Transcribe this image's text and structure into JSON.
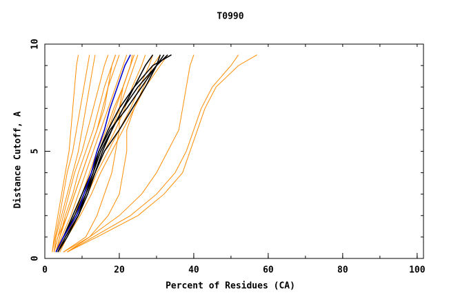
{
  "chart_data": {
    "type": "line",
    "title": "T0990",
    "xlabel": "Percent of Residues (CA)",
    "ylabel": "Distance Cutoff, A",
    "xlim": [
      0,
      101.7
    ],
    "ylim": [
      0,
      10
    ],
    "xticks": [
      0,
      20,
      40,
      60,
      80,
      100
    ],
    "yticks": [
      0,
      5,
      10
    ],
    "y": [
      0.3,
      1,
      2,
      3,
      4,
      5,
      6,
      7,
      8,
      9,
      9.5
    ],
    "series": [
      {
        "color": "#ff8c00",
        "x": [
          2,
          2.5,
          3.5,
          4.5,
          5.5,
          6.5,
          7,
          7.5,
          8,
          8.5,
          9
        ]
      },
      {
        "color": "#ff8c00",
        "x": [
          2,
          2.8,
          4,
          5,
          6,
          7.5,
          8.5,
          9.5,
          10.5,
          11.5,
          12
        ]
      },
      {
        "color": "#ff8c00",
        "x": [
          2.5,
          3,
          4.5,
          6,
          7.5,
          9,
          10,
          11,
          12,
          13,
          13.5
        ]
      },
      {
        "color": "#ff8c00",
        "x": [
          2.5,
          3.5,
          5,
          6.5,
          8,
          10,
          11.5,
          13,
          14.5,
          16,
          17
        ]
      },
      {
        "color": "#ff8c00",
        "x": [
          3,
          4,
          5.5,
          7.5,
          9,
          11,
          13,
          14.5,
          16,
          18,
          19
        ]
      },
      {
        "color": "#ff8c00",
        "x": [
          2.5,
          3.5,
          6,
          8,
          10,
          12,
          14,
          15.5,
          17,
          19,
          20
        ]
      },
      {
        "color": "#ff8c00",
        "x": [
          3,
          4,
          6,
          8,
          10,
          12,
          14,
          16,
          17,
          18,
          19
        ]
      },
      {
        "color": "#ff8c00",
        "x": [
          3,
          4.5,
          7,
          9,
          11,
          13,
          15,
          17,
          19,
          21,
          22
        ]
      },
      {
        "color": "#ff8c00",
        "x": [
          3.5,
          5,
          7.5,
          10,
          12.5,
          14.5,
          17,
          19,
          21,
          23,
          23.5
        ]
      },
      {
        "color": "#ff8c00",
        "x": [
          3,
          5,
          8,
          10,
          12,
          14,
          16.5,
          18.5,
          21,
          23,
          24
        ]
      },
      {
        "color": "#ff8c00",
        "x": [
          3.5,
          5,
          8,
          11,
          13,
          15,
          18,
          20,
          22,
          24,
          25
        ]
      },
      {
        "color": "#ff8c00",
        "x": [
          3.5,
          5.5,
          8.5,
          11,
          13.5,
          16,
          19,
          21.5,
          23.5,
          26,
          27
        ]
      },
      {
        "color": "#ff8c00",
        "x": [
          4,
          6,
          9,
          11.5,
          14,
          17,
          20,
          23,
          25.5,
          28,
          29
        ]
      },
      {
        "color": "#ff8c00",
        "x": [
          4,
          6,
          9.5,
          12.5,
          15,
          18,
          21,
          24,
          26.5,
          29,
          31
        ]
      },
      {
        "color": "#ff8c00",
        "x": [
          5,
          11,
          14,
          16,
          18,
          19,
          20,
          20,
          21,
          23,
          24
        ]
      },
      {
        "color": "#ff8c00",
        "x": [
          5,
          12,
          17,
          20,
          21,
          22,
          22,
          24,
          27,
          31,
          33
        ]
      },
      {
        "color": "#ff8c00",
        "x": [
          6,
          12,
          20,
          26,
          30,
          33,
          36,
          37,
          38,
          39,
          40
        ]
      },
      {
        "color": "#ff8c00",
        "x": [
          6,
          13,
          23,
          30,
          35,
          38,
          40,
          42,
          45,
          50,
          52
        ]
      },
      {
        "color": "#ff8c00",
        "x": [
          6,
          14,
          25,
          32,
          37,
          39,
          41,
          43,
          46,
          52,
          57
        ]
      },
      {
        "color": "#000000",
        "x": [
          3,
          5,
          8,
          10.5,
          13,
          15,
          18,
          21,
          24,
          27,
          29
        ]
      },
      {
        "color": "#000000",
        "x": [
          3.5,
          5.5,
          9,
          11,
          13.5,
          16,
          20,
          23.5,
          27,
          30,
          31
        ]
      },
      {
        "color": "#000000",
        "x": [
          3,
          5,
          7.5,
          10,
          12.5,
          14.5,
          17,
          20,
          24,
          29,
          34
        ]
      },
      {
        "color": "#000000",
        "x": [
          3.5,
          6,
          9,
          11.5,
          13.5,
          15.5,
          18,
          21,
          25,
          30,
          32
        ]
      },
      {
        "color": "#000000",
        "x": [
          3,
          5,
          8.5,
          11,
          13,
          14.5,
          17.5,
          22,
          26,
          30,
          33
        ]
      },
      {
        "color": "#0000cc",
        "x": [
          3,
          5,
          8.5,
          10.5,
          12.5,
          14,
          16,
          17.5,
          19.5,
          21.5,
          23
        ]
      }
    ]
  }
}
